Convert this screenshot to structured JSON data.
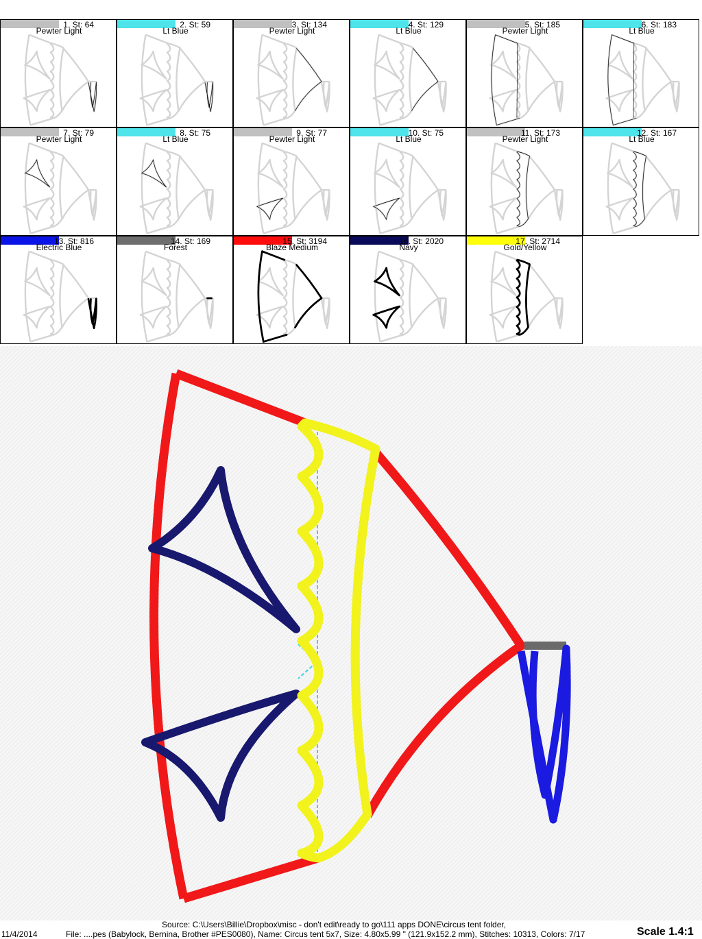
{
  "color_blocks": [
    {
      "number": "1",
      "stitch_label": "1. St: 64",
      "name": "Pewter Light",
      "swatch": "#c0c0c0",
      "part": "flag"
    },
    {
      "number": "2",
      "stitch_label": "2. St: 59",
      "name": "Lt Blue",
      "swatch": "#4fe3ea",
      "part": "flag"
    },
    {
      "number": "3",
      "stitch_label": "3. St: 134",
      "name": "Pewter Light",
      "swatch": "#c0c0c0",
      "part": "right"
    },
    {
      "number": "4",
      "stitch_label": "4. St: 129",
      "name": "Lt Blue",
      "swatch": "#4fe3ea",
      "part": "right"
    },
    {
      "number": "5",
      "stitch_label": "5. St: 185",
      "name": "Pewter Light",
      "swatch": "#c0c0c0",
      "part": "left"
    },
    {
      "number": "6",
      "stitch_label": "6. St: 183",
      "name": "Lt Blue",
      "swatch": "#4fe3ea",
      "part": "left"
    },
    {
      "number": "7",
      "stitch_label": "7. St: 79",
      "name": "Pewter Light",
      "swatch": "#c0c0c0",
      "part": "tri1"
    },
    {
      "number": "8",
      "stitch_label": "8. St: 75",
      "name": "Lt Blue",
      "swatch": "#4fe3ea",
      "part": "tri1"
    },
    {
      "number": "9",
      "stitch_label": "9. St: 77",
      "name": "Pewter Light",
      "swatch": "#c0c0c0",
      "part": "tri2"
    },
    {
      "number": "10",
      "stitch_label": "10. St: 75",
      "name": "Lt Blue",
      "swatch": "#4fe3ea",
      "part": "tri2"
    },
    {
      "number": "11",
      "stitch_label": "11. St: 173",
      "name": "Pewter Light",
      "swatch": "#c0c0c0",
      "part": "band"
    },
    {
      "number": "12",
      "stitch_label": "12. St: 167",
      "name": "Lt Blue",
      "swatch": "#4fe3ea",
      "part": "band"
    },
    {
      "number": "13",
      "stitch_label": "13. St: 816",
      "name": "Electric Blue",
      "swatch": "#0a14e6",
      "part": "flag-bold"
    },
    {
      "number": "14",
      "stitch_label": "14. St: 169",
      "name": "Forest",
      "swatch": "#6e6e6e",
      "part": "pole"
    },
    {
      "number": "15",
      "stitch_label": "15. St: 3194",
      "name": "Blaze Medium",
      "swatch": "#ff0c0c",
      "part": "outline"
    },
    {
      "number": "16",
      "stitch_label": "16. St: 2020",
      "name": "Navy",
      "swatch": "#0a0a5a",
      "part": "triangles"
    },
    {
      "number": "17",
      "stitch_label": "17. St: 2714",
      "name": "Gold/Yellow",
      "swatch": "#ffff0a",
      "part": "band-bold"
    }
  ],
  "design_colors": {
    "outline": "#f01818",
    "band": "#f2f21c",
    "triangles": "#18186e",
    "flag": "#1a1ae0",
    "pole": "#6a6a6a",
    "placement": "#38d6e4"
  },
  "footer": {
    "date": "11/4/2014",
    "source": "Source: C:\\Users\\Billie\\Dropbox\\misc - don't edit\\ready to go\\111 apps DONE\\circus tent folder,",
    "file_info": "File: ....pes (Babylock, Bernina, Brother #PES0080), Name: Circus tent 5x7, Size: 4.80x5.99 \" (121.9x152.2 mm), Stitches: 10313, Colors: 7/17",
    "scale": "Scale 1.4:1"
  }
}
